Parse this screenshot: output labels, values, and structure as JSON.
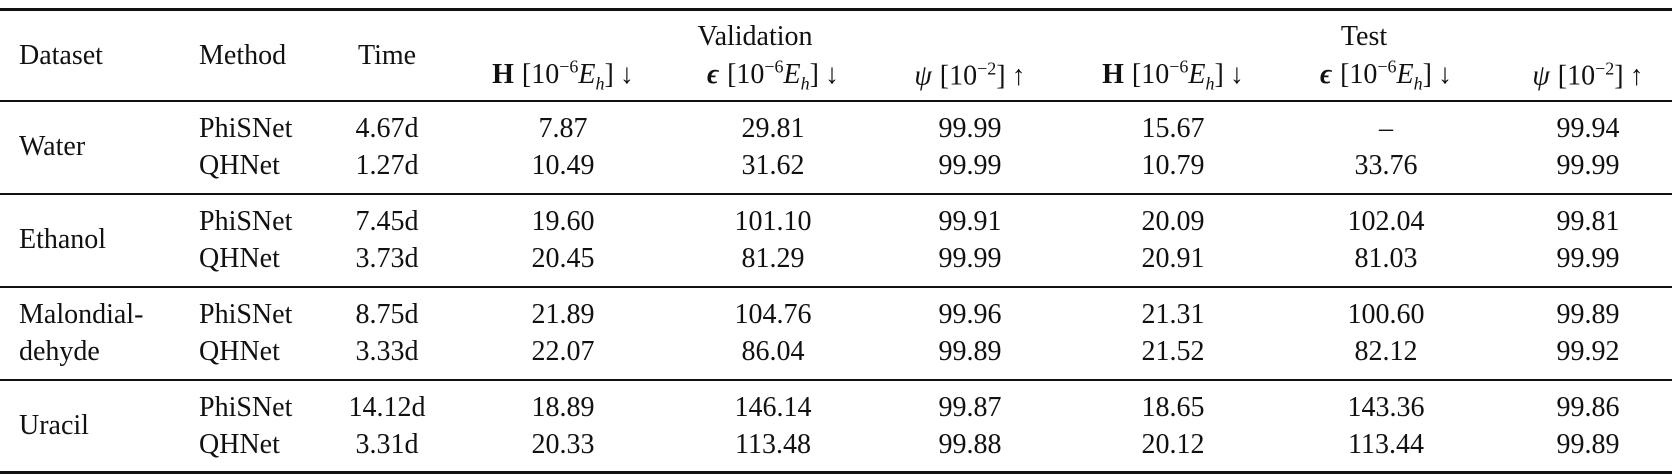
{
  "table": {
    "columns": {
      "dataset": "Dataset",
      "method": "Method",
      "time": "Time"
    },
    "groups": [
      "Validation",
      "Test"
    ],
    "metrics": [
      {
        "sym": "H",
        "base": "[10",
        "exp": "−6",
        "unit": "E",
        "sub": "h",
        "tail": "]",
        "arrow": "↓"
      },
      {
        "sym": "ϵ",
        "base": "[10",
        "exp": "−6",
        "unit": "E",
        "sub": "h",
        "tail": "]",
        "arrow": "↓"
      },
      {
        "sym": "ψ",
        "base": "[10",
        "exp": "−2",
        "tail": "]",
        "arrow": "↑"
      },
      {
        "sym": "H",
        "base": "[10",
        "exp": "−6",
        "unit": "E",
        "sub": "h",
        "tail": "]",
        "arrow": "↓"
      },
      {
        "sym": "ϵ",
        "base": "[10",
        "exp": "−6",
        "unit": "E",
        "sub": "h",
        "tail": "]",
        "arrow": "↓"
      },
      {
        "sym": "ψ",
        "base": "[10",
        "exp": "−2",
        "tail": "]",
        "arrow": "↑"
      }
    ],
    "datasets": [
      {
        "name": [
          "Water"
        ],
        "rows": [
          [
            "PhiSNet",
            "4.67d",
            "7.87",
            "29.81",
            "99.99",
            "15.67",
            "–",
            "99.94"
          ],
          [
            "QHNet",
            "1.27d",
            "10.49",
            "31.62",
            "99.99",
            "10.79",
            "33.76",
            "99.99"
          ]
        ]
      },
      {
        "name": [
          "Ethanol"
        ],
        "rows": [
          [
            "PhiSNet",
            "7.45d",
            "19.60",
            "101.10",
            "99.91",
            "20.09",
            "102.04",
            "99.81"
          ],
          [
            "QHNet",
            "3.73d",
            "20.45",
            "81.29",
            "99.99",
            "20.91",
            "81.03",
            "99.99"
          ]
        ]
      },
      {
        "name": [
          "Malondial-",
          "dehyde"
        ],
        "rows": [
          [
            "PhiSNet",
            "8.75d",
            "21.89",
            "104.76",
            "99.96",
            "21.31",
            "100.60",
            "99.89"
          ],
          [
            "QHNet",
            "3.33d",
            "22.07",
            "86.04",
            "99.89",
            "21.52",
            "82.12",
            "99.92"
          ]
        ]
      },
      {
        "name": [
          "Uracil"
        ],
        "rows": [
          [
            "PhiSNet",
            "14.12d",
            "18.89",
            "146.14",
            "99.87",
            "18.65",
            "143.36",
            "99.86"
          ],
          [
            "QHNet",
            "3.31d",
            "20.33",
            "113.48",
            "99.88",
            "20.12",
            "113.44",
            "99.89"
          ]
        ]
      }
    ]
  }
}
